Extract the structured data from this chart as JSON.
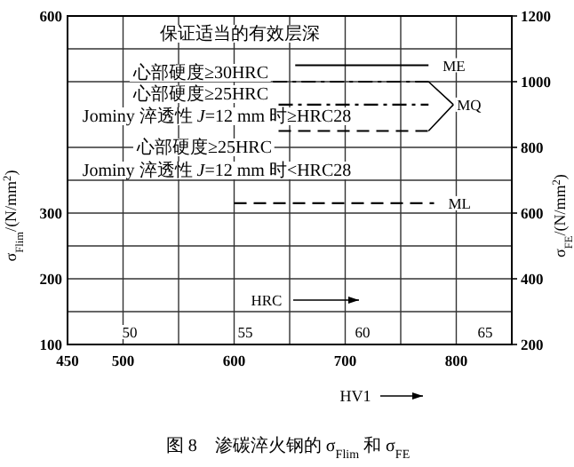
{
  "chart_data": {
    "type": "line",
    "title": "图 8　渗碳淬火钢的 σ$_{Flim}$ 和 σ$_{FE}$",
    "xlabel": "HV1",
    "ylabel": "σ$_{Flim}$/(N/mm$^{2}$)",
    "y2label": "σ$_{FE}$/(N/mm$^{2}$)",
    "xlim": [
      450,
      850
    ],
    "xticks": [
      450,
      500,
      {
        "value": 550,
        "label": null
      },
      600,
      {
        "value": 650,
        "label": null
      },
      700,
      {
        "value": 750,
        "label": null
      },
      800,
      {
        "value": 850,
        "label": null
      }
    ],
    "ylim": [
      100,
      600
    ],
    "yticks": [
      100,
      {
        "value": 150,
        "label": null
      },
      200,
      {
        "value": 250,
        "label": null
      },
      300,
      {
        "value": 350,
        "label": null
      },
      {
        "value": 400,
        "label": null
      },
      {
        "value": 500,
        "label": null
      },
      {
        "value": 550,
        "label": null
      },
      600
    ],
    "y2lim": [
      200,
      1200
    ],
    "y2ticks": [
      200,
      400,
      600,
      800,
      1000,
      1200
    ],
    "grid": true,
    "series": [
      {
        "name": "ME",
        "color": "#000000",
        "line_style": "solid",
        "x": [
          655,
          775
        ],
        "values": [
          525,
          525
        ]
      },
      {
        "name": "MQ",
        "color": "#000000",
        "line_style": "dashdot",
        "x": [
          640,
          775
        ],
        "values": [
          465,
          465
        ]
      },
      {
        "color": "#000000",
        "line_style": "dashdot",
        "x": [
          635,
          775
        ],
        "values": [
          500,
          500
        ]
      },
      {
        "color": "#000000",
        "line_style": "dashed",
        "x": [
          640,
          775
        ],
        "values": [
          425,
          425
        ]
      },
      {
        "name": "ML",
        "color": "#000000",
        "line_style": "dashed",
        "x": [
          600,
          780
        ],
        "values": [
          315,
          315
        ]
      }
    ],
    "annotations": [
      "保证适当的有效层深",
      "心部硬度≥30HRC",
      "心部硬度≥25HRC",
      "Jominy 淬透性 *J*=12 mm 时≥HRC28",
      "心部硬度≥25HRC",
      "Jominy 淬透性 *J*=12 mm 时<HRC28",
      "HRC",
      "50",
      "55",
      "60",
      "65"
    ]
  }
}
